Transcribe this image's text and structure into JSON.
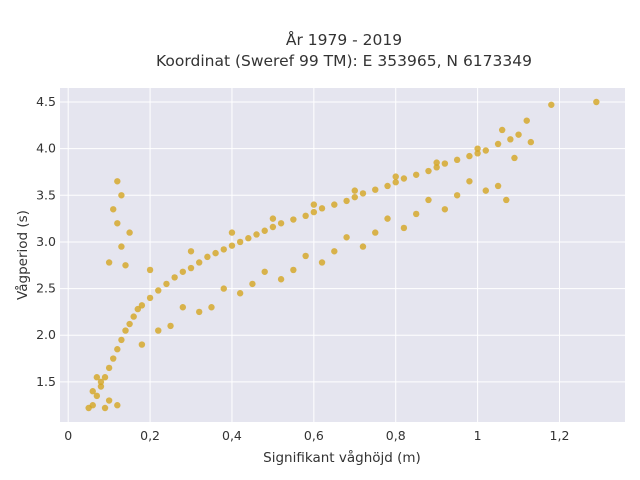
{
  "chart_data": {
    "type": "scatter",
    "title_line1": "År 1979 - 2019",
    "title_line2": "Koordinat (Sweref 99 TM): E 353965, N 6173349",
    "xlabel": "Signifikant våghöjd (m)",
    "ylabel": "Vågperiod (s)",
    "xlim": [
      -0.02,
      1.36
    ],
    "ylim": [
      1.07,
      4.65
    ],
    "xticks": [
      0,
      0.2,
      0.4,
      0.6,
      0.8,
      1,
      1.2
    ],
    "xtick_labels": [
      "0",
      "0,2",
      "0,4",
      "0,6",
      "0,8",
      "1",
      "1,2"
    ],
    "yticks": [
      1.5,
      2.0,
      2.5,
      3.0,
      3.5,
      4.0,
      4.5
    ],
    "ytick_labels": [
      "1.5",
      "2.0",
      "2.5",
      "3.0",
      "3.5",
      "4.0",
      "4.5"
    ],
    "grid": true,
    "legend": "none",
    "colors": {
      "marker": "#d4a520",
      "plot_bg": "#e5e5ef",
      "grid": "#ffffff"
    },
    "series": [
      {
        "x": [
          0.05,
          0.06,
          0.07,
          0.08,
          0.09,
          0.1,
          0.11,
          0.12,
          0.13,
          0.14,
          0.15,
          0.16,
          0.17,
          0.18,
          0.2,
          0.22,
          0.24,
          0.26,
          0.28,
          0.3,
          0.32,
          0.34,
          0.36,
          0.38,
          0.4,
          0.42,
          0.44,
          0.46,
          0.48,
          0.5,
          0.52,
          0.55,
          0.58,
          0.6,
          0.62,
          0.65,
          0.68,
          0.7,
          0.72,
          0.75,
          0.78,
          0.8,
          0.82,
          0.85,
          0.88,
          0.9,
          0.92,
          0.95,
          0.98,
          1.0,
          1.02,
          1.05,
          1.08,
          1.1,
          1.12,
          1.18,
          1.29,
          0.12,
          0.13,
          0.11,
          0.15,
          0.1,
          0.14,
          0.12,
          0.13,
          0.09,
          0.07,
          0.08,
          0.06,
          0.1,
          0.12,
          0.18,
          0.25,
          0.35,
          0.45,
          0.55,
          0.65,
          0.75,
          0.85,
          0.95,
          1.05,
          0.22,
          0.32,
          0.42,
          0.52,
          0.62,
          0.72,
          0.82,
          0.92,
          1.02,
          0.28,
          0.38,
          0.48,
          0.58,
          0.68,
          0.78,
          0.88,
          0.98,
          0.2,
          0.3,
          0.4,
          0.5,
          0.6,
          0.7,
          0.8,
          0.9,
          1.0,
          1.13,
          1.07,
          1.09,
          1.06
        ],
        "y": [
          1.22,
          1.25,
          1.35,
          1.45,
          1.55,
          1.65,
          1.75,
          1.85,
          1.95,
          2.05,
          2.12,
          2.2,
          2.28,
          2.32,
          2.4,
          2.48,
          2.55,
          2.62,
          2.68,
          2.72,
          2.78,
          2.84,
          2.88,
          2.92,
          2.96,
          3.0,
          3.04,
          3.08,
          3.12,
          3.16,
          3.2,
          3.24,
          3.28,
          3.32,
          3.36,
          3.4,
          3.44,
          3.48,
          3.52,
          3.56,
          3.6,
          3.64,
          3.68,
          3.72,
          3.76,
          3.8,
          3.84,
          3.88,
          3.92,
          3.95,
          3.98,
          4.05,
          4.1,
          4.15,
          4.3,
          4.47,
          4.5,
          3.65,
          3.5,
          3.35,
          3.1,
          2.78,
          2.75,
          3.2,
          2.95,
          1.22,
          1.55,
          1.5,
          1.4,
          1.3,
          1.25,
          1.9,
          2.1,
          2.3,
          2.55,
          2.7,
          2.9,
          3.1,
          3.3,
          3.5,
          3.6,
          2.05,
          2.25,
          2.45,
          2.6,
          2.78,
          2.95,
          3.15,
          3.35,
          3.55,
          2.3,
          2.5,
          2.68,
          2.85,
          3.05,
          3.25,
          3.45,
          3.65,
          2.7,
          2.9,
          3.1,
          3.25,
          3.4,
          3.55,
          3.7,
          3.85,
          4.0,
          4.07,
          3.45,
          3.9,
          4.2
        ]
      }
    ]
  }
}
